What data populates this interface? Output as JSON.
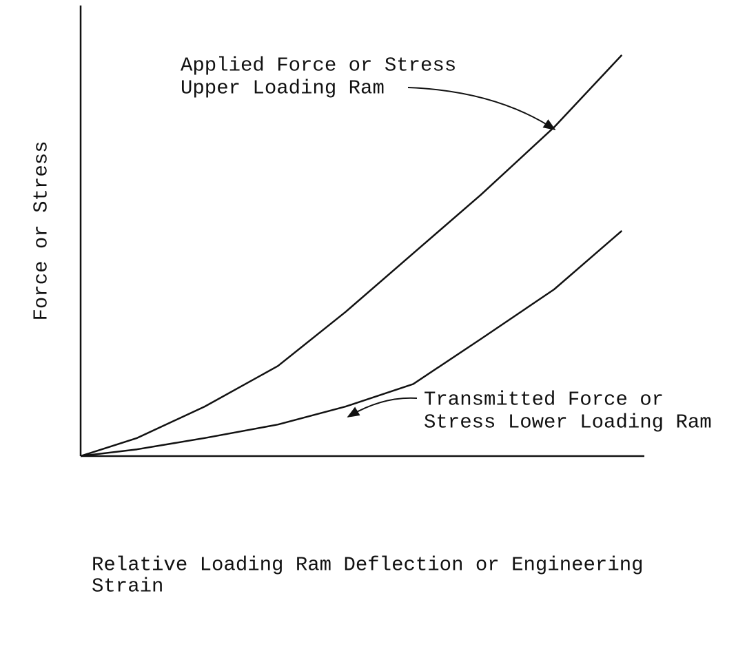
{
  "chart_data": {
    "type": "line",
    "ylabel": "Force or Stress",
    "xlabel": [
      "Relative Loading Ram Deflection or Engineering",
      "Strain"
    ],
    "x": [
      0,
      10,
      22,
      35,
      47,
      59,
      71,
      84,
      96
    ],
    "xlim": [
      0,
      100
    ],
    "ylim": [
      0,
      100
    ],
    "series": [
      {
        "name": [
          "Applied Force or Stress",
          "Upper Loading Ram"
        ],
        "color": "#111111",
        "values": [
          0,
          4,
          11,
          20,
          32,
          45,
          58,
          73,
          89
        ]
      },
      {
        "name": [
          "Transmitted Force or",
          "Stress Lower Loading Ram"
        ],
        "color": "#111111",
        "values": [
          0,
          1.5,
          4,
          7,
          11,
          16,
          26,
          37,
          50
        ]
      }
    ]
  }
}
